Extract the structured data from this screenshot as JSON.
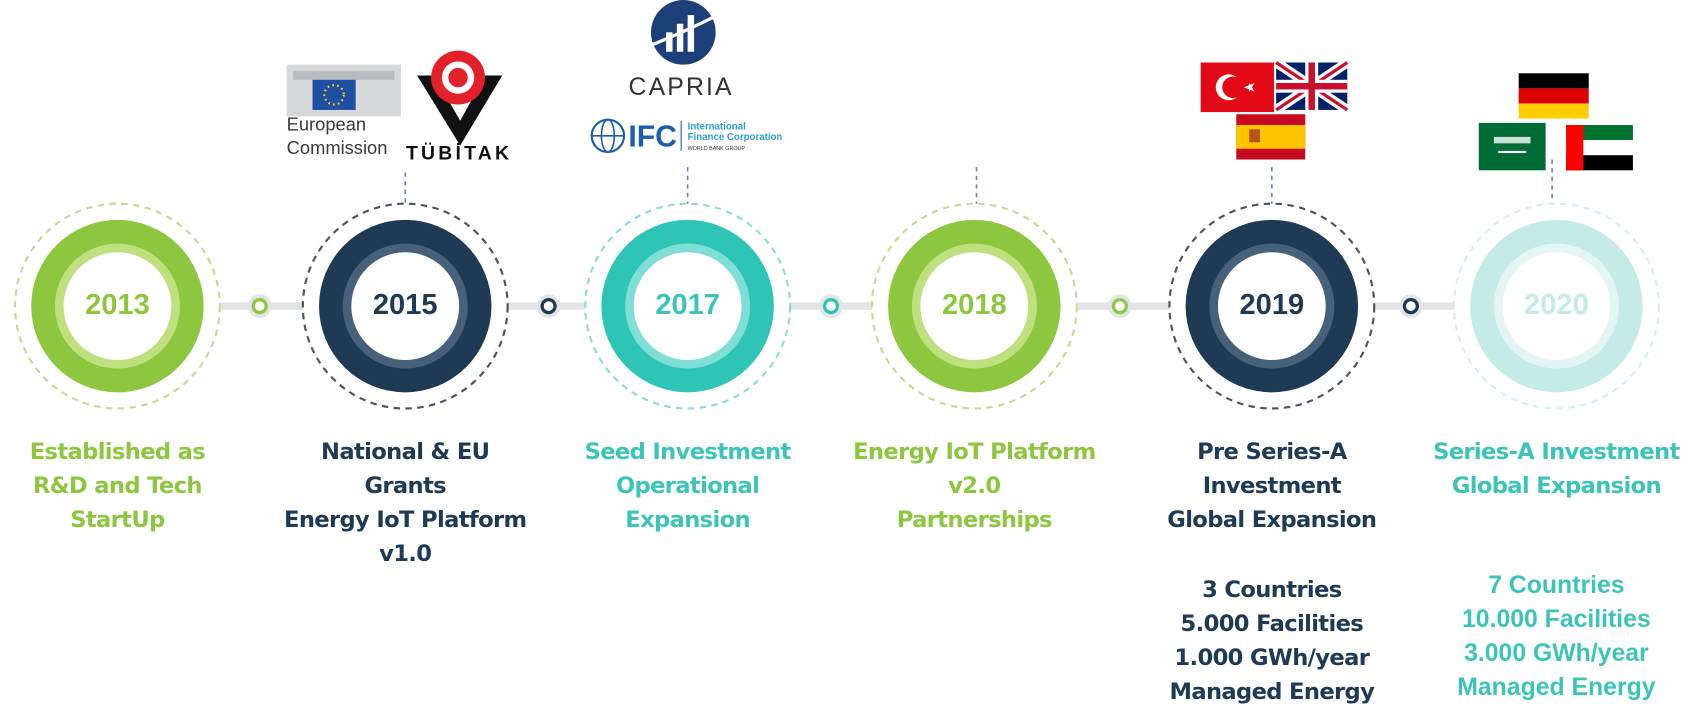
{
  "logos": {
    "european_commission": [
      "European",
      "Commission"
    ],
    "tubitak": "TÜBİTAK",
    "capria": "CAPRIA",
    "ifc": "IFC",
    "ifc_name": [
      "International",
      "Finance Corporation"
    ],
    "ifc_group": "WORLD BANK GROUP"
  },
  "milestones": [
    {
      "year": "2013",
      "lines": [
        "Established as",
        "R&D and Tech",
        "StartUp"
      ]
    },
    {
      "year": "2015",
      "lines": [
        "National & EU",
        "Grants",
        "Energy IoT Platform",
        "v1.0"
      ]
    },
    {
      "year": "2017",
      "lines": [
        "Seed Investment",
        "Operational",
        "Expansion"
      ]
    },
    {
      "year": "2018",
      "lines": [
        "Energy IoT Platform",
        "v2.0",
        "Partnerships"
      ]
    },
    {
      "year": "2019",
      "lines": [
        "Pre Series-A",
        "Investment",
        "Global Expansion"
      ],
      "stats": [
        "3 Countries",
        "5.000 Facilities",
        "1.000 GWh/year",
        "Managed Energy"
      ]
    },
    {
      "year": "2020",
      "lines": [
        "Series-A Investment",
        "Global Expansion"
      ],
      "stats": [
        "7 Countries",
        "10.000 Facilities",
        "3.000 GWh/year",
        "Managed Energy"
      ]
    }
  ]
}
